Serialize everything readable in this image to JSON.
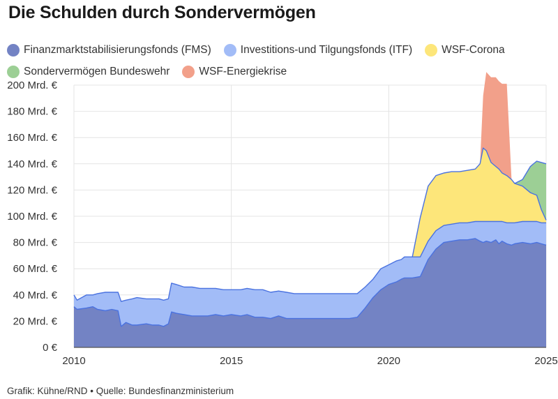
{
  "title": "Die Schulden durch Sondervermögen",
  "footer": "Grafik: Kühne/RND • Quelle: Bundesfinanzministerium",
  "chart_data": {
    "type": "area",
    "stacked": true,
    "x_unit": "year",
    "xlim": [
      2010,
      2025
    ],
    "ylim": [
      0,
      200
    ],
    "grid": true,
    "legend_position": "top",
    "x_ticks": [
      2010,
      2015,
      2020,
      2025
    ],
    "x_tick_labels": [
      "2010",
      "2015",
      "2020",
      "2025"
    ],
    "y_ticks": [
      0,
      20,
      40,
      60,
      80,
      100,
      120,
      140,
      160,
      180,
      200
    ],
    "y_tick_labels": [
      "0 €",
      "20 Mrd. €",
      "40 Mrd. €",
      "60 Mrd. €",
      "80 Mrd. €",
      "100 Mrd. €",
      "120 Mrd. €",
      "140 Mrd. €",
      "160 Mrd. €",
      "180 Mrd. €",
      "200 Mrd. €"
    ],
    "x": [
      2010.0,
      2010.1,
      2010.4,
      2010.6,
      2010.75,
      2011.0,
      2011.2,
      2011.4,
      2011.5,
      2011.65,
      2011.85,
      2012.0,
      2012.3,
      2012.5,
      2012.7,
      2012.85,
      2013.0,
      2013.1,
      2013.25,
      2013.5,
      2013.75,
      2014.0,
      2014.25,
      2014.5,
      2014.75,
      2015.0,
      2015.3,
      2015.5,
      2015.75,
      2016.0,
      2016.25,
      2016.5,
      2016.75,
      2017.0,
      2017.5,
      2018.0,
      2018.5,
      2018.75,
      2019.0,
      2019.25,
      2019.5,
      2019.75,
      2020.0,
      2020.25,
      2020.4,
      2020.5,
      2020.6,
      2020.75,
      2021.0,
      2021.25,
      2021.5,
      2021.75,
      2022.0,
      2022.25,
      2022.5,
      2022.75,
      2022.9,
      2023.0,
      2023.1,
      2023.25,
      2023.4,
      2023.5,
      2023.6,
      2023.75,
      2023.9,
      2024.0,
      2024.25,
      2024.5,
      2024.7,
      2024.85,
      2025.0
    ],
    "series": [
      {
        "name": "Finanzmarktstabilisierungsfonds (FMS)",
        "color": "#7383c4",
        "line": "#4a72e0",
        "values": [
          31,
          29,
          30,
          31,
          29,
          28,
          29,
          28,
          16,
          19,
          17,
          17,
          18,
          17,
          17,
          16,
          18,
          27,
          26,
          25,
          24,
          24,
          24,
          25,
          24,
          25,
          24,
          25,
          23,
          23,
          22,
          24,
          22,
          22,
          22,
          22,
          22,
          22,
          23,
          30,
          38,
          44,
          48,
          50,
          52,
          53,
          53,
          53,
          54,
          67,
          75,
          80,
          81,
          82,
          82,
          83,
          81,
          80,
          81,
          80,
          82,
          79,
          81,
          79,
          78,
          79,
          80,
          79,
          80,
          79,
          78
        ]
      },
      {
        "name": "Investitions-und Tilgungsfonds (ITF)",
        "color": "#a2bcf7",
        "line": "#4a72e0",
        "values": [
          9,
          7,
          10,
          9,
          12,
          14,
          13,
          14,
          19,
          17,
          20,
          21,
          19,
          20,
          20,
          20,
          19,
          22,
          22,
          21,
          22,
          21,
          21,
          20,
          20,
          19,
          20,
          20,
          21,
          21,
          20,
          19,
          20,
          19,
          19,
          19,
          19,
          19,
          18,
          16,
          14,
          16,
          15,
          16,
          15,
          16,
          16,
          16,
          15,
          14,
          14,
          13,
          13,
          13,
          13,
          13,
          15,
          16,
          15,
          16,
          14,
          17,
          15,
          16,
          17,
          16,
          16,
          17,
          16,
          16,
          17
        ]
      },
      {
        "name": "WSF-Corona",
        "color": "#fde67a",
        "line": "#4a72e0",
        "values": [
          0,
          0,
          0,
          0,
          0,
          0,
          0,
          0,
          0,
          0,
          0,
          0,
          0,
          0,
          0,
          0,
          0,
          0,
          0,
          0,
          0,
          0,
          0,
          0,
          0,
          0,
          0,
          0,
          0,
          0,
          0,
          0,
          0,
          0,
          0,
          0,
          0,
          0,
          0,
          0,
          0,
          0,
          0,
          0,
          0,
          0,
          0,
          0,
          30,
          42,
          42,
          40,
          40,
          39,
          40,
          40,
          44,
          56,
          54,
          45,
          42,
          40,
          37,
          36,
          33,
          30,
          27,
          22,
          20,
          10,
          2
        ]
      },
      {
        "name": "Sondervermögen Bundeswehr",
        "color": "#9ccf95",
        "line": "#4a72e0",
        "values": [
          0,
          0,
          0,
          0,
          0,
          0,
          0,
          0,
          0,
          0,
          0,
          0,
          0,
          0,
          0,
          0,
          0,
          0,
          0,
          0,
          0,
          0,
          0,
          0,
          0,
          0,
          0,
          0,
          0,
          0,
          0,
          0,
          0,
          0,
          0,
          0,
          0,
          0,
          0,
          0,
          0,
          0,
          0,
          0,
          0,
          0,
          0,
          0,
          0,
          0,
          0,
          0,
          0,
          0,
          0,
          0,
          0,
          0,
          0,
          0,
          0,
          0,
          0,
          0,
          0,
          0,
          5,
          20,
          26,
          36,
          43
        ]
      },
      {
        "name": "WSF-Energiekrise",
        "color": "#f2a08a",
        "line": "#f2a08a",
        "values": [
          0,
          0,
          0,
          0,
          0,
          0,
          0,
          0,
          0,
          0,
          0,
          0,
          0,
          0,
          0,
          0,
          0,
          0,
          0,
          0,
          0,
          0,
          0,
          0,
          0,
          0,
          0,
          0,
          0,
          0,
          0,
          0,
          0,
          0,
          0,
          0,
          0,
          0,
          0,
          0,
          0,
          0,
          0,
          0,
          0,
          0,
          0,
          0,
          0,
          0,
          0,
          0,
          0,
          0,
          0,
          0,
          0,
          40,
          60,
          65,
          68,
          67,
          68,
          70,
          0,
          0,
          0,
          0,
          0,
          0,
          0
        ]
      }
    ]
  }
}
